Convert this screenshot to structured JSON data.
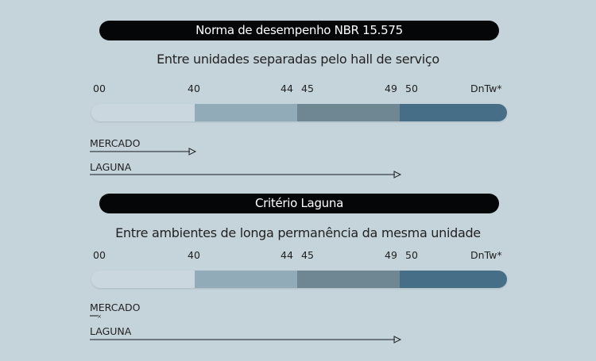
{
  "chart_data": [
    {
      "type": "bar",
      "title": "Norma de desempenho NBR 15.575",
      "subtitle": "Entre unidades separadas pelo hall de serviço",
      "scale_unit": "DnTw*",
      "tick_labels": [
        "00",
        "40",
        "44",
        "45",
        "49",
        "50",
        "DnTw*"
      ],
      "bands": [
        {
          "from": 0,
          "to": 40,
          "color": "#cbd7de"
        },
        {
          "from": 40,
          "to": 44,
          "color": "#92abb8"
        },
        {
          "from": 45,
          "to": 49,
          "color": "#6e8793"
        },
        {
          "from": 50,
          "to": null,
          "color": "#466f87"
        }
      ],
      "series": [
        {
          "name": "MERCADO",
          "value": 40
        },
        {
          "name": "LAGUNA",
          "value": 49
        }
      ]
    },
    {
      "type": "bar",
      "title": "Critério Laguna",
      "subtitle": "Entre ambientes de longa permanência da mesma unidade",
      "scale_unit": "DnTw*",
      "tick_labels": [
        "00",
        "40",
        "44",
        "45",
        "49",
        "50",
        "DnTw*"
      ],
      "bands": [
        {
          "from": 0,
          "to": 40,
          "color": "#cbd7de"
        },
        {
          "from": 40,
          "to": 44,
          "color": "#92abb8"
        },
        {
          "from": 45,
          "to": 49,
          "color": "#6e8793"
        },
        {
          "from": 50,
          "to": null,
          "color": "#466f87"
        }
      ],
      "series": [
        {
          "name": "MERCADO",
          "value": 0
        },
        {
          "name": "LAGUNA",
          "value": 49
        }
      ]
    }
  ]
}
